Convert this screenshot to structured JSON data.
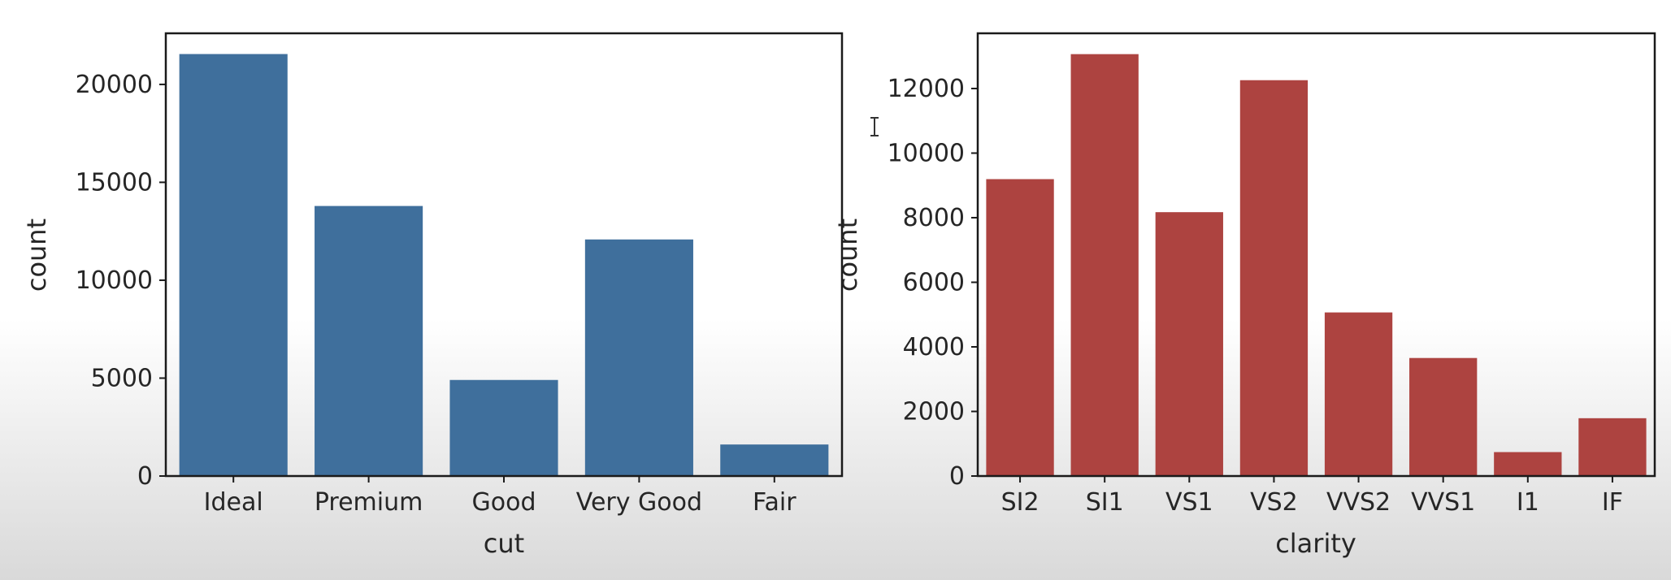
{
  "chart_data": [
    {
      "type": "bar",
      "xlabel": "cut",
      "ylabel": "count",
      "categories": [
        "Ideal",
        "Premium",
        "Good",
        "Very Good",
        "Fair"
      ],
      "values": [
        21551,
        13791,
        4906,
        12082,
        1610
      ],
      "ylim": [
        0,
        22610
      ],
      "yticks": [
        0,
        5000,
        10000,
        15000,
        20000
      ],
      "color": "#3f6f9c",
      "grid": false,
      "legend": "none"
    },
    {
      "type": "bar",
      "xlabel": "clarity",
      "ylabel": "count",
      "categories": [
        "SI2",
        "SI1",
        "VS1",
        "VS2",
        "VVS2",
        "VVS1",
        "I1",
        "IF"
      ],
      "values": [
        9194,
        13065,
        8171,
        12258,
        5066,
        3655,
        741,
        1790
      ],
      "ylim": [
        0,
        13710
      ],
      "yticks": [
        0,
        2000,
        4000,
        6000,
        8000,
        10000,
        12000
      ],
      "color": "#ad4340",
      "grid": false,
      "legend": "none"
    }
  ]
}
